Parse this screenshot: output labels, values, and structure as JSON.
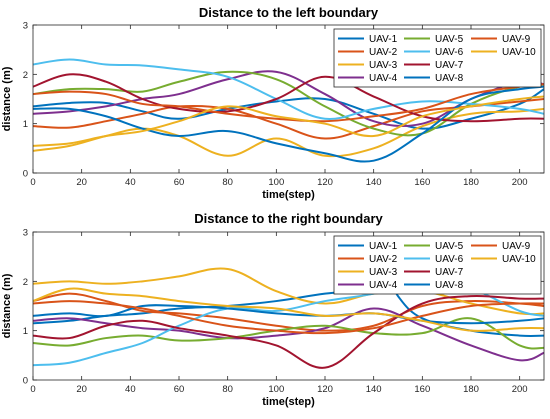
{
  "chart_data": [
    {
      "type": "line",
      "title": "Distance to the left boundary",
      "xlabel": "time(step)",
      "ylabel": "distance (m)",
      "xlim": [
        0,
        210
      ],
      "ylim": [
        0,
        3
      ],
      "xticks": [
        0,
        20,
        40,
        60,
        80,
        100,
        120,
        140,
        160,
        180,
        200
      ],
      "yticks": [
        0,
        1,
        2,
        3
      ],
      "legend_position": "top-right",
      "legend_columns": 3,
      "series": [
        {
          "name": "UAV-1",
          "color": "#0072BD",
          "x": [
            0,
            15,
            30,
            45,
            60,
            80,
            100,
            120,
            140,
            160,
            180,
            200,
            210
          ],
          "y": [
            1.35,
            1.42,
            1.42,
            1.25,
            1.1,
            1.3,
            1.45,
            1.5,
            1.2,
            0.9,
            1.1,
            1.4,
            1.7
          ]
        },
        {
          "name": "UAV-2",
          "color": "#D95319",
          "x": [
            0,
            15,
            30,
            45,
            60,
            80,
            100,
            120,
            140,
            160,
            180,
            200,
            210
          ],
          "y": [
            0.95,
            0.92,
            1.05,
            1.2,
            1.35,
            1.3,
            1.0,
            0.7,
            0.95,
            1.25,
            1.35,
            1.45,
            1.5
          ]
        },
        {
          "name": "UAV-3",
          "color": "#EDB120",
          "x": [
            0,
            15,
            30,
            45,
            60,
            80,
            100,
            120,
            140,
            160,
            180,
            200,
            210
          ],
          "y": [
            0.45,
            0.55,
            0.75,
            0.9,
            0.75,
            0.35,
            0.7,
            0.35,
            0.5,
            0.95,
            1.2,
            1.25,
            1.3
          ]
        },
        {
          "name": "UAV-4",
          "color": "#7E2F8E",
          "x": [
            0,
            15,
            30,
            45,
            60,
            80,
            100,
            120,
            140,
            160,
            180,
            200,
            210
          ],
          "y": [
            1.2,
            1.25,
            1.35,
            1.5,
            1.6,
            1.9,
            2.05,
            1.6,
            1.05,
            1.0,
            1.5,
            1.85,
            1.8
          ]
        },
        {
          "name": "UAV-5",
          "color": "#77AC30",
          "x": [
            0,
            15,
            30,
            45,
            60,
            80,
            100,
            120,
            140,
            160,
            180,
            200,
            210
          ],
          "y": [
            1.6,
            1.7,
            1.7,
            1.65,
            1.85,
            2.05,
            1.9,
            1.35,
            0.9,
            0.8,
            1.4,
            1.75,
            1.75
          ]
        },
        {
          "name": "UAV-6",
          "color": "#4DBEEE",
          "x": [
            0,
            15,
            30,
            45,
            60,
            80,
            100,
            120,
            140,
            160,
            180,
            200,
            210
          ],
          "y": [
            2.2,
            2.3,
            2.2,
            2.18,
            2.1,
            1.95,
            1.5,
            1.1,
            1.3,
            1.45,
            1.4,
            1.3,
            1.2
          ]
        },
        {
          "name": "UAV-7",
          "color": "#A2142F",
          "x": [
            0,
            15,
            30,
            45,
            60,
            80,
            100,
            120,
            140,
            160,
            180,
            200,
            210
          ],
          "y": [
            1.75,
            2.0,
            1.85,
            1.5,
            1.3,
            1.25,
            1.5,
            1.95,
            1.55,
            1.15,
            1.05,
            1.1,
            1.1
          ]
        },
        {
          "name": "UAV-8",
          "color": "#0072BD",
          "x": [
            0,
            15,
            30,
            45,
            60,
            80,
            100,
            120,
            140,
            160,
            180,
            200,
            210
          ],
          "y": [
            1.3,
            1.3,
            1.15,
            0.9,
            0.75,
            0.85,
            0.6,
            0.4,
            0.25,
            0.8,
            1.5,
            1.7,
            1.75
          ]
        },
        {
          "name": "UAV-9",
          "color": "#D95319",
          "x": [
            0,
            15,
            30,
            45,
            60,
            80,
            100,
            120,
            140,
            160,
            180,
            200,
            210
          ],
          "y": [
            1.6,
            1.65,
            1.6,
            1.4,
            1.35,
            1.2,
            1.1,
            1.05,
            1.15,
            1.3,
            1.6,
            1.75,
            1.8
          ]
        },
        {
          "name": "UAV-10",
          "color": "#EDB120",
          "x": [
            0,
            15,
            30,
            45,
            60,
            80,
            100,
            120,
            140,
            160,
            180,
            200,
            210
          ],
          "y": [
            0.55,
            0.6,
            0.75,
            0.85,
            1.05,
            1.35,
            1.15,
            1.0,
            0.75,
            1.15,
            1.35,
            1.5,
            1.55
          ]
        }
      ]
    },
    {
      "type": "line",
      "title": "Distance to the right boundary",
      "xlabel": "time(step)",
      "ylabel": "distance (m)",
      "xlim": [
        0,
        210
      ],
      "ylim": [
        0,
        3
      ],
      "xticks": [
        0,
        20,
        40,
        60,
        80,
        100,
        120,
        140,
        160,
        180,
        200
      ],
      "yticks": [
        0,
        1,
        2,
        3
      ],
      "legend_position": "top-right",
      "legend_columns": 3,
      "series": [
        {
          "name": "UAV-1",
          "color": "#0072BD",
          "x": [
            0,
            15,
            30,
            45,
            60,
            80,
            100,
            120,
            140,
            146,
            150,
            160,
            180,
            200,
            210
          ],
          "y": [
            1.15,
            1.2,
            1.3,
            1.35,
            1.45,
            1.5,
            1.6,
            1.75,
            1.85,
            2.15,
            1.7,
            1.25,
            1.0,
            0.9,
            0.9
          ]
        },
        {
          "name": "UAV-2",
          "color": "#D95319",
          "x": [
            0,
            15,
            30,
            45,
            60,
            80,
            100,
            120,
            140,
            160,
            180,
            200,
            210
          ],
          "y": [
            1.6,
            1.75,
            1.6,
            1.4,
            1.35,
            1.25,
            1.1,
            1.0,
            1.1,
            1.5,
            1.6,
            1.55,
            1.5
          ]
        },
        {
          "name": "UAV-3",
          "color": "#EDB120",
          "x": [
            0,
            15,
            30,
            45,
            60,
            80,
            100,
            120,
            140,
            160,
            180,
            200,
            210
          ],
          "y": [
            1.95,
            2.0,
            1.95,
            2.0,
            2.1,
            2.25,
            1.8,
            1.55,
            1.75,
            1.8,
            1.55,
            1.35,
            1.35
          ]
        },
        {
          "name": "UAV-4",
          "color": "#7E2F8E",
          "x": [
            0,
            15,
            30,
            45,
            60,
            80,
            100,
            120,
            140,
            160,
            180,
            200,
            210
          ],
          "y": [
            1.2,
            1.25,
            1.15,
            1.05,
            1.0,
            0.85,
            0.9,
            1.05,
            1.45,
            1.1,
            0.7,
            0.4,
            0.55
          ]
        },
        {
          "name": "UAV-5",
          "color": "#77AC30",
          "x": [
            0,
            15,
            30,
            45,
            60,
            80,
            100,
            120,
            140,
            160,
            180,
            200,
            210
          ],
          "y": [
            0.75,
            0.7,
            0.85,
            0.9,
            0.8,
            0.85,
            1.0,
            1.1,
            0.95,
            0.95,
            1.25,
            0.7,
            0.65
          ]
        },
        {
          "name": "UAV-6",
          "color": "#4DBEEE",
          "x": [
            0,
            15,
            30,
            45,
            60,
            80,
            100,
            120,
            140,
            160,
            180,
            200,
            210
          ],
          "y": [
            0.3,
            0.35,
            0.55,
            0.75,
            1.1,
            1.45,
            1.4,
            1.6,
            1.75,
            2.0,
            1.85,
            1.4,
            1.3
          ]
        },
        {
          "name": "UAV-7",
          "color": "#A2142F",
          "x": [
            0,
            15,
            30,
            45,
            60,
            80,
            100,
            120,
            140,
            160,
            180,
            200,
            210
          ],
          "y": [
            0.9,
            0.85,
            1.1,
            1.2,
            1.05,
            0.9,
            0.7,
            0.25,
            0.95,
            1.55,
            1.7,
            1.65,
            1.65
          ]
        },
        {
          "name": "UAV-8",
          "color": "#0072BD",
          "x": [
            0,
            15,
            30,
            45,
            60,
            80,
            100,
            120,
            140,
            160,
            180,
            200,
            210
          ],
          "y": [
            1.3,
            1.35,
            1.3,
            1.5,
            1.5,
            1.45,
            1.35,
            1.3,
            1.35,
            1.2,
            1.15,
            1.2,
            1.25
          ]
        },
        {
          "name": "UAV-9",
          "color": "#D95319",
          "x": [
            0,
            15,
            30,
            45,
            60,
            80,
            100,
            120,
            140,
            160,
            180,
            200,
            210
          ],
          "y": [
            1.55,
            1.6,
            1.55,
            1.45,
            1.3,
            1.1,
            1.0,
            0.95,
            1.05,
            1.3,
            1.5,
            1.55,
            1.55
          ]
        },
        {
          "name": "UAV-10",
          "color": "#EDB120",
          "x": [
            0,
            15,
            30,
            45,
            60,
            80,
            100,
            120,
            140,
            160,
            180,
            200,
            210
          ],
          "y": [
            1.6,
            1.85,
            1.75,
            1.7,
            1.6,
            1.5,
            1.45,
            1.3,
            1.35,
            1.2,
            1.0,
            1.05,
            1.05
          ]
        }
      ]
    }
  ]
}
